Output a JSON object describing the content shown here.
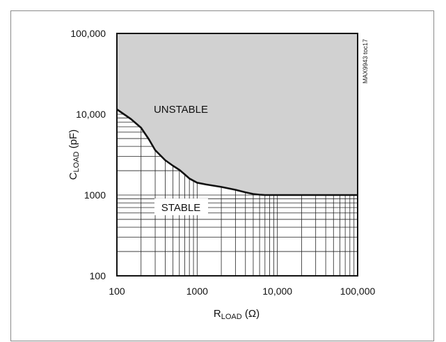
{
  "chart_data": {
    "type": "area",
    "x_scale": "log",
    "y_scale": "log",
    "xlim": [
      100,
      100000
    ],
    "ylim": [
      100,
      100000
    ],
    "xticks": [
      "100",
      "1000",
      "10,000",
      "100,000"
    ],
    "yticks": [
      "100",
      "1000",
      "10,000",
      "100,000"
    ],
    "xlabel": {
      "main": "R",
      "sub": "LOAD",
      "unit": " (Ω)"
    },
    "ylabel": {
      "main": "C",
      "sub": "LOAD",
      "unit": " (pF)"
    },
    "regions": {
      "upper": "UNSTABLE",
      "lower": "STABLE"
    },
    "figure_id": "MAX9943 toc17",
    "grid": "log minor grid in STABLE region only",
    "colors": {
      "unstable_fill": "#d1d1d1",
      "stable_fill": "#ffffff",
      "boundary": "#111111",
      "grid": "#222222"
    },
    "series": [
      {
        "x": [
          100,
          150,
          200,
          250,
          300,
          400,
          500,
          600,
          700,
          800,
          1000,
          1300,
          2000,
          3000,
          4000,
          5000,
          6000,
          7000,
          8000,
          10000,
          20000,
          50000,
          100000
        ],
        "y": [
          11500,
          8700,
          6800,
          4900,
          3600,
          2700,
          2300,
          2050,
          1800,
          1600,
          1420,
          1350,
          1260,
          1160,
          1080,
          1030,
          1010,
          1000,
          1000,
          1000,
          1000,
          1000,
          1000
        ]
      }
    ]
  }
}
